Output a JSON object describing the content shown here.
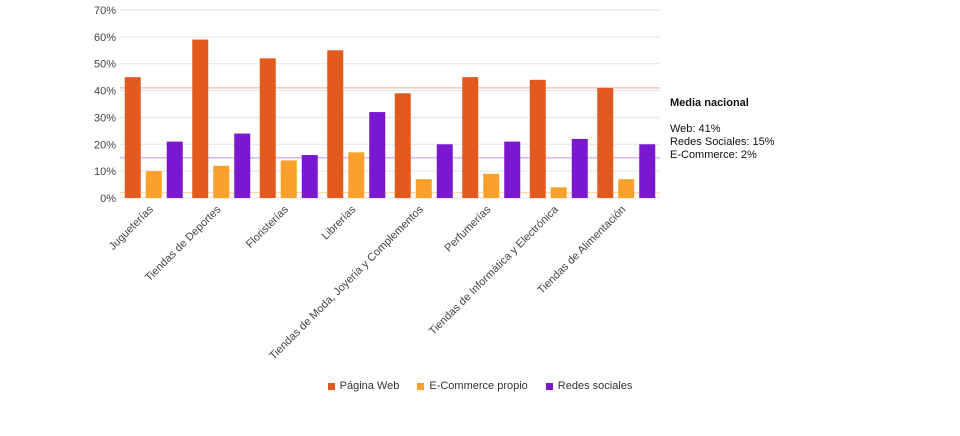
{
  "chart_data": {
    "type": "bar",
    "title": "",
    "xlabel": "",
    "ylabel": "",
    "ylim": [
      0,
      70
    ],
    "yticks": [
      "0%",
      "10%",
      "20%",
      "30%",
      "40%",
      "50%",
      "60%",
      "70%"
    ],
    "grid": true,
    "legend_position": "bottom",
    "categories": [
      "Jugueterías",
      "Tiendas de Deportes",
      "Floristerías",
      "Librerías",
      "Tiendas de Moda, Joyería y Complementos",
      "Perfumerías",
      "Tiendas de Informática y Electrónica",
      "Tiendas de Alimentación"
    ],
    "series": [
      {
        "name": "Página Web",
        "color": "#E35A1E",
        "values": [
          45,
          59,
          52,
          55,
          39,
          45,
          44,
          41
        ]
      },
      {
        "name": "E-Commerce propio",
        "color": "#F9A12A",
        "values": [
          10,
          12,
          14,
          17,
          7,
          9,
          4,
          7
        ]
      },
      {
        "name": "Redes sociales",
        "color": "#7A17D0",
        "values": [
          21,
          24,
          16,
          32,
          20,
          21,
          22,
          20
        ]
      }
    ],
    "reference_lines": [
      {
        "name": "Web",
        "value": 41,
        "color": "#F5C6B8"
      },
      {
        "name": "Redes Sociales",
        "value": 15,
        "color": "#D9B6EF"
      },
      {
        "name": "E-Commerce",
        "value": 2,
        "color": "#FBDDB0"
      }
    ]
  },
  "annotation": {
    "title": "Media nacional",
    "lines": [
      "Web: 41%",
      "Redes Sociales: 15%",
      "E-Commerce: 2%"
    ]
  }
}
